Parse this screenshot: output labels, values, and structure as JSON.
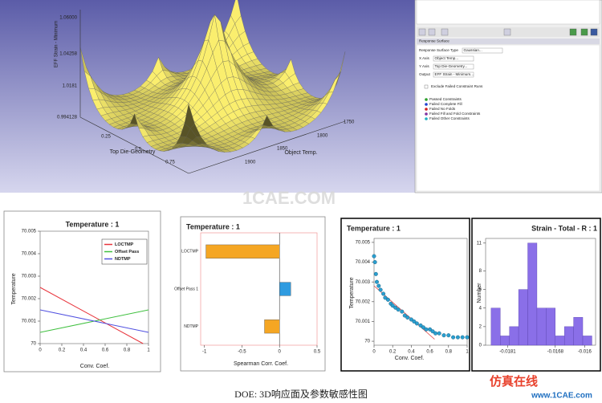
{
  "surface_view": {
    "z_label": "EFF Strain - Minimum",
    "z_ticks": [
      "1.06000",
      "1.04258",
      "1.0181",
      "0.994128"
    ],
    "x_label": "Top Die-Geometry",
    "x_ticks": [
      "0.25",
      "0.5",
      "0.75"
    ],
    "y_label": "Object Temp.",
    "y_ticks": [
      "1750",
      "1800",
      "1850",
      "1900"
    ]
  },
  "panel": {
    "header": "Response Surface",
    "rows": [
      {
        "label": "Response Surface Type",
        "value": "Gaussian..."
      },
      {
        "label": "X Axis",
        "value": "Object Temp..."
      },
      {
        "label": "Y Axis",
        "value": "Top Die-Geometry..."
      },
      {
        "label": "Output",
        "value": "EFF Strain - Minimum..."
      }
    ],
    "checkbox": "Exclude Failed Constraint Runs",
    "legend": [
      {
        "label": "Passed Constraints",
        "color": "#2aa02a"
      },
      {
        "label": "Failed Complete Fill",
        "color": "#2040d0"
      },
      {
        "label": "Failed No Folds",
        "color": "#d02020"
      },
      {
        "label": "Failed Fill and Fold Constraints",
        "color": "#8030a0"
      },
      {
        "label": "Failed Other Constraints",
        "color": "#20b0c0"
      }
    ]
  },
  "chart_data": [
    {
      "type": "line",
      "title": "Temperature : 1",
      "x_label": "Conv. Coef.",
      "y_label": "Temperature",
      "xlim": [
        0,
        1
      ],
      "xticks": [
        0,
        0.2,
        0.4,
        0.6,
        0.8,
        1
      ],
      "ylim": [
        70,
        70.005
      ],
      "yticks": [
        70,
        70.001,
        70.002,
        70.003,
        70.004,
        70.005
      ],
      "legend": "upper right",
      "series": [
        {
          "name": "LOCTMP",
          "color": "#e8343c",
          "x": [
            0,
            0.95
          ],
          "values": [
            70.0025,
            70
          ]
        },
        {
          "name": "Offset Pass",
          "color": "#40c040",
          "x": [
            0,
            1
          ],
          "values": [
            70.0005,
            70.0015
          ]
        },
        {
          "name": "NDTMP",
          "color": "#5050e0",
          "x": [
            0,
            1
          ],
          "values": [
            70.0015,
            70.0005
          ]
        }
      ]
    },
    {
      "type": "hbar",
      "title": "Temperature : 1",
      "x_label": "Spearman Corr. Coef.",
      "categories": [
        "LOCTMP",
        "Offset Pass 1",
        "NDTMP"
      ],
      "values": [
        -0.98,
        0.15,
        -0.2
      ],
      "colors": [
        "#f5a623",
        "#2f9be0",
        "#f5a623"
      ],
      "xlim": [
        -1.05,
        0.5
      ],
      "xticks": [
        -1,
        -0.5,
        0,
        0.5
      ]
    },
    {
      "type": "scatter",
      "title": "Temperature : 1",
      "x_label": "Conv. Coef.",
      "y_label": "Temperature",
      "xlim": [
        0,
        1
      ],
      "xticks": [
        0,
        0.2,
        0.4,
        0.6,
        0.8,
        1
      ],
      "ylim": [
        69.9998,
        70.0052
      ],
      "yticks": [
        70,
        70.001,
        70.002,
        70.003,
        70.004,
        70.005
      ],
      "color": "#2a9fd0",
      "x": [
        0,
        0.01,
        0.02,
        0.03,
        0.05,
        0.07,
        0.1,
        0.12,
        0.15,
        0.18,
        0.2,
        0.23,
        0.26,
        0.3,
        0.33,
        0.36,
        0.4,
        0.43,
        0.46,
        0.5,
        0.53,
        0.56,
        0.6,
        0.63,
        0.66,
        0.7,
        0.75,
        0.8,
        0.85,
        0.9,
        0.95,
        1
      ],
      "values": [
        70.0043,
        70.004,
        70.0034,
        70.003,
        70.0028,
        70.0026,
        70.0024,
        70.0022,
        70.0021,
        70.0019,
        70.0018,
        70.0017,
        70.0016,
        70.0015,
        70.0013,
        70.0012,
        70.0011,
        70.001,
        70.0009,
        70.0008,
        70.0007,
        70.0006,
        70.0006,
        70.0005,
        70.0004,
        70.0004,
        70.0003,
        70.0003,
        70.0002,
        70.0002,
        70.0002,
        70.0002
      ],
      "trend_line": {
        "color": "#e05050",
        "x": [
          0,
          0.65
        ],
        "values": [
          70.0028,
          70.0001
        ]
      }
    },
    {
      "type": "histogram",
      "title": "Strain - Total - R : 1",
      "y_label": "Number",
      "bins": [
        -0.01855,
        -0.0183,
        -0.01805,
        -0.0178,
        -0.01755,
        -0.0173,
        -0.01705,
        -0.0168,
        -0.01655,
        -0.0163,
        -0.01605,
        -0.0158
      ],
      "values": [
        4,
        1,
        2,
        6,
        11,
        4,
        4,
        1,
        2,
        3,
        1
      ],
      "color": "#8a6fe8",
      "xlim": [
        -0.0187,
        -0.0157
      ],
      "xticks": [
        -0.0181,
        -0.0168,
        -0.016
      ],
      "ylim": [
        0,
        11.5
      ],
      "yticks": [
        0,
        2,
        4,
        6,
        8,
        11
      ]
    }
  ],
  "watermarks": [
    "1CAE.COM",
    "仿真在线",
    "www.1CAE.com"
  ],
  "caption": "DOE: 3D响应面及参数敏感性图"
}
